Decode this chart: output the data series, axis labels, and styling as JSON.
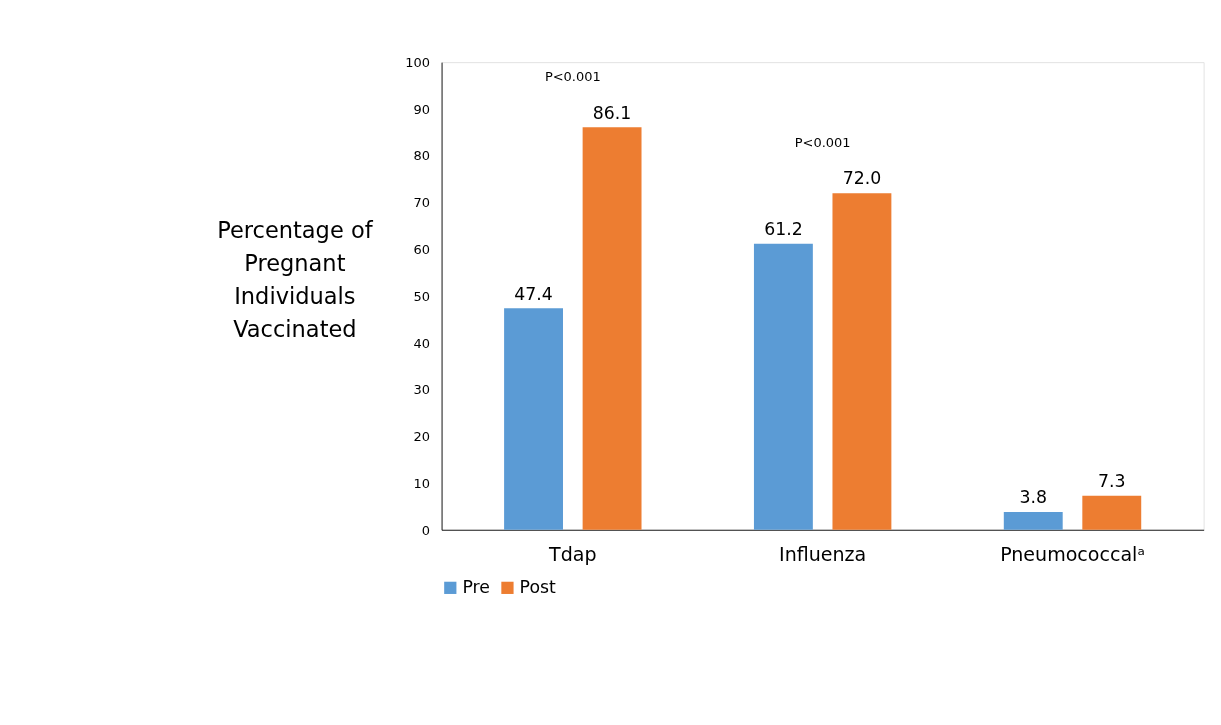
{
  "chart_data": {
    "type": "bar",
    "ylabel": "Percentage of Pregnant Individuals Vaccinated",
    "categories": [
      "Tdap",
      "Influenza",
      "Pneumococcalᵃ"
    ],
    "series": [
      {
        "name": "Pre",
        "color": "#5b9bd5",
        "values": [
          47.4,
          61.2,
          3.8
        ],
        "value_labels": [
          "47.4",
          "61.2",
          "3.8"
        ]
      },
      {
        "name": "Post",
        "color": "#ed7d31",
        "values": [
          86.1,
          72.0,
          7.3
        ],
        "value_labels": [
          "86.1",
          "72.0",
          "7.3"
        ]
      }
    ],
    "ylim": [
      0,
      100
    ],
    "yticks": [
      0,
      10,
      20,
      30,
      40,
      50,
      60,
      70,
      80,
      90,
      100
    ],
    "grid": false,
    "legend": "bottom",
    "annotations": [
      "P<0.001",
      "P<0.001"
    ]
  }
}
